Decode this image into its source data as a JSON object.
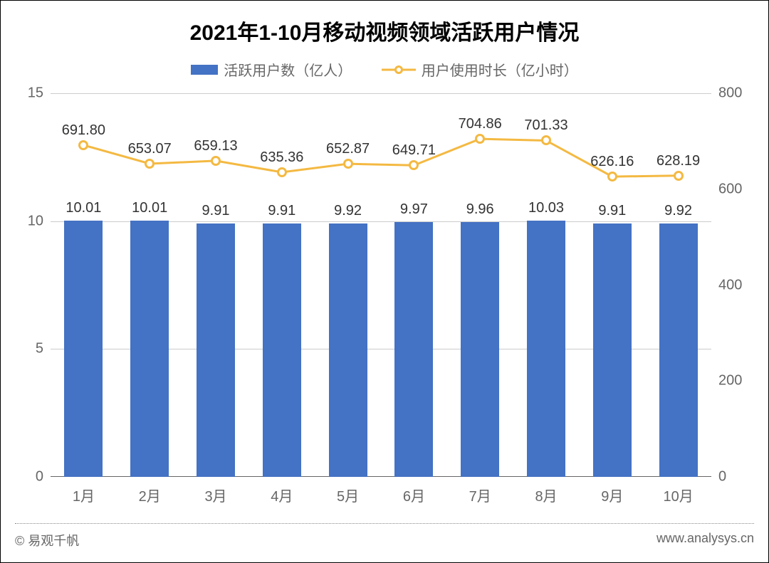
{
  "chart": {
    "type": "bar+line",
    "title": "2021年1-10月移动视频领域活跃用户情况",
    "title_fontsize": 30,
    "title_color": "#000000",
    "background_color": "#ffffff",
    "categories": [
      "1月",
      "2月",
      "3月",
      "4月",
      "5月",
      "6月",
      "7月",
      "8月",
      "9月",
      "10月"
    ],
    "legend": {
      "bar_label": "活跃用户数（亿人）",
      "line_label": "用户使用时长（亿小时）",
      "font_color": "#666666",
      "font_size": 20
    },
    "series_bar": {
      "name": "活跃用户数",
      "values": [
        10.01,
        10.01,
        9.91,
        9.91,
        9.92,
        9.97,
        9.96,
        10.03,
        9.91,
        9.92
      ],
      "color": "#4472c4",
      "bar_width_ratio": 0.58,
      "data_label_color": "#333333",
      "data_label_fontsize": 20
    },
    "series_line": {
      "name": "用户使用时长",
      "values": [
        691.8,
        653.07,
        659.13,
        635.36,
        652.87,
        649.71,
        704.86,
        701.33,
        626.16,
        628.19
      ],
      "line_color": "#f4b942",
      "line_width": 3,
      "marker_fill": "#ffffff",
      "marker_border": "#f4b942",
      "marker_border_width": 3,
      "marker_radius": 7,
      "data_label_color": "#333333",
      "data_label_fontsize": 20
    },
    "y_left": {
      "min": 0,
      "max": 15,
      "ticks": [
        0,
        5,
        10,
        15
      ],
      "font_color": "#666666",
      "font_size": 20
    },
    "y_right": {
      "min": 0,
      "max": 800,
      "ticks": [
        0,
        200,
        400,
        600,
        800
      ],
      "font_color": "#666666",
      "font_size": 20
    },
    "grid": {
      "color": "#cccccc",
      "baseline_color": "#666666"
    },
    "xaxis_font_color": "#666666",
    "xaxis_font_size": 20
  },
  "footer": {
    "left": "© 易观千帆",
    "right": "www.analysys.cn",
    "font_color": "#666666",
    "font_size": 18,
    "divider_color": "#888888"
  }
}
